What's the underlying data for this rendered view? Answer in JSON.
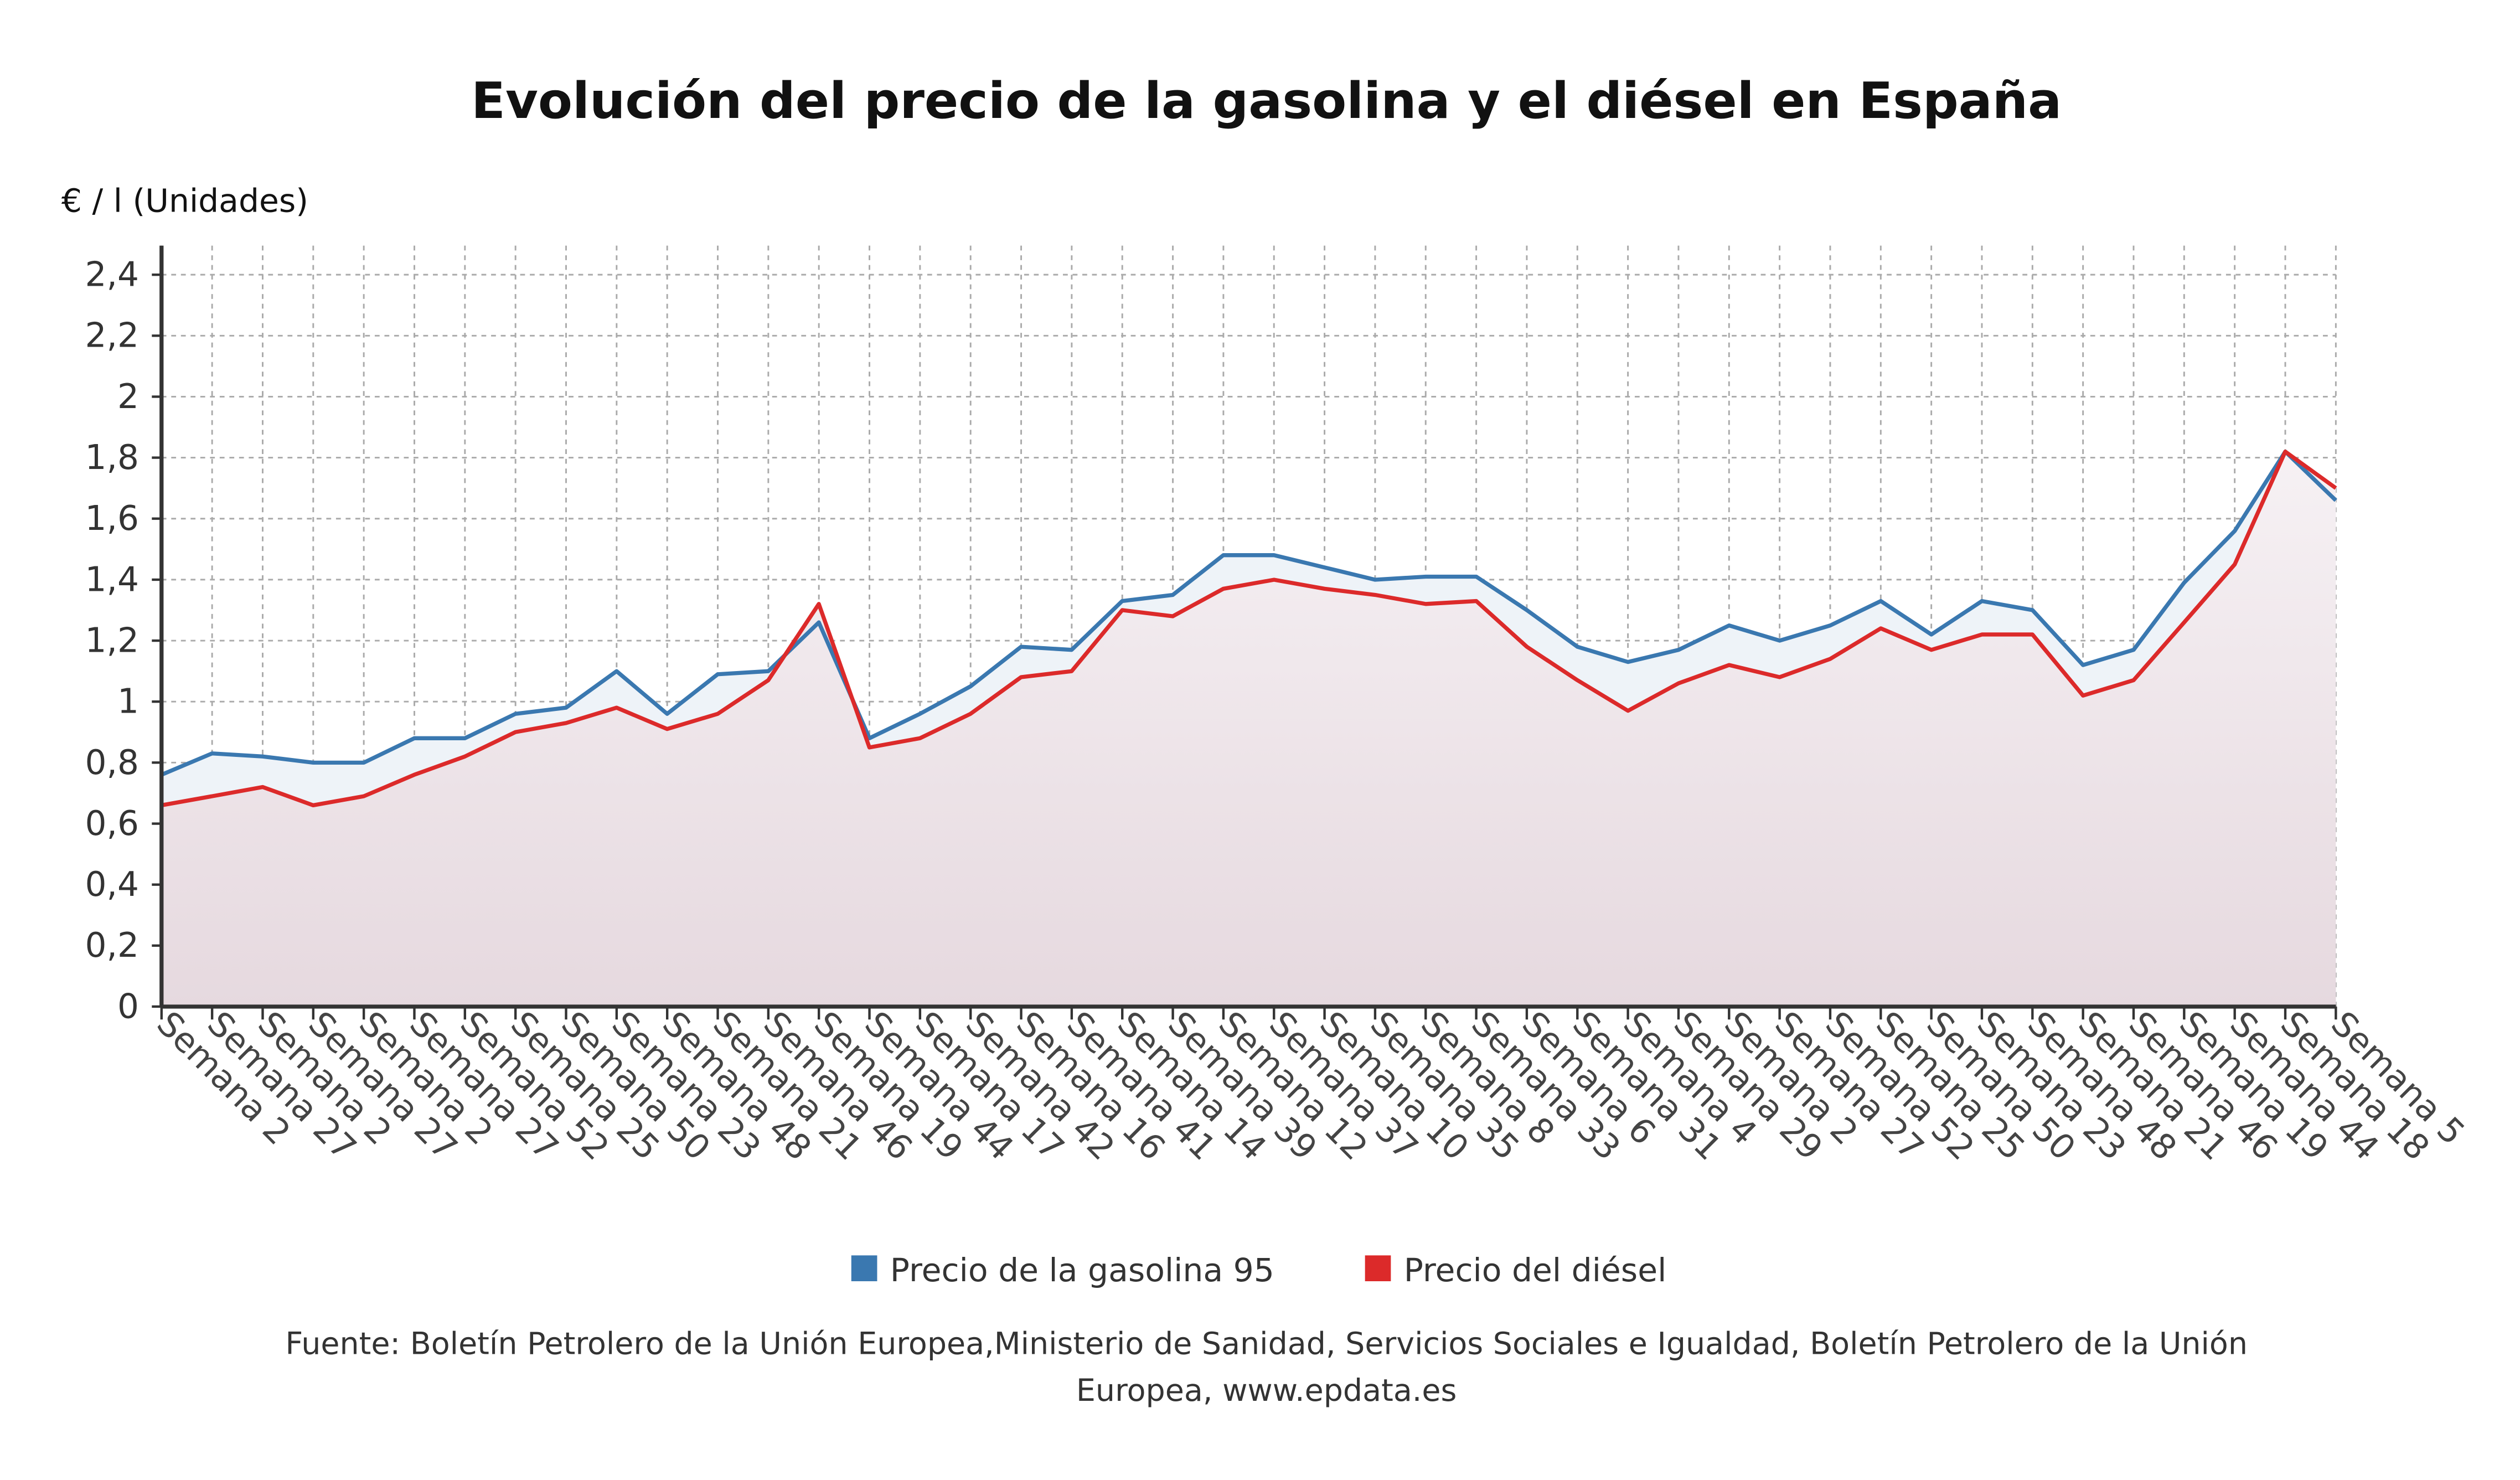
{
  "chart_data": {
    "type": "area",
    "title": "Evolución del precio de la gasolina y el diésel en España",
    "ylabel": "€ / l (Unidades)",
    "xlabel": "",
    "ylim": [
      0,
      2.4
    ],
    "yticks": [
      "0",
      "0,2",
      "0,4",
      "0,6",
      "0,8",
      "1",
      "1,2",
      "1,4",
      "1,6",
      "1,8",
      "2",
      "2,2",
      "2,4"
    ],
    "grid": true,
    "legend_position": "bottom",
    "categories": [
      "Semana 2",
      "Semana 27",
      "Semana 2",
      "Semana 27",
      "Semana 2",
      "Semana 27",
      "Semana 52",
      "Semana 25",
      "Semana 50",
      "Semana 23",
      "Semana 48",
      "Semana 21",
      "Semana 46",
      "Semana 19",
      "Semana 44",
      "Semana 17",
      "Semana 42",
      "Semana 16",
      "Semana 41",
      "Semana 14",
      "Semana 39",
      "Semana 12",
      "Semana 37",
      "Semana 10",
      "Semana 35",
      "Semana 8",
      "Semana 33",
      "Semana 6",
      "Semana 31",
      "Semana 4",
      "Semana 29",
      "Semana 2",
      "Semana 27",
      "Semana 52",
      "Semana 25",
      "Semana 50",
      "Semana 23",
      "Semana 48",
      "Semana 21",
      "Semana 46",
      "Semana 19",
      "Semana 44",
      "Semana 18",
      "Semana 5"
    ],
    "series": [
      {
        "name": "Precio de la gasolina 95",
        "color": "#3a78b0",
        "values": [
          0.76,
          0.83,
          0.82,
          0.8,
          0.8,
          0.88,
          0.88,
          0.96,
          0.98,
          1.1,
          0.96,
          1.09,
          1.1,
          1.26,
          0.88,
          0.96,
          1.05,
          1.18,
          1.17,
          1.33,
          1.35,
          1.48,
          1.48,
          1.44,
          1.4,
          1.41,
          1.41,
          1.3,
          1.18,
          1.13,
          1.17,
          1.25,
          1.2,
          1.25,
          1.33,
          1.22,
          1.33,
          1.3,
          1.12,
          1.17,
          1.39,
          1.56,
          1.82,
          1.66
        ]
      },
      {
        "name": "Precio del diésel",
        "color": "#dc2a2a",
        "values": [
          0.66,
          0.69,
          0.72,
          0.66,
          0.69,
          0.76,
          0.82,
          0.9,
          0.93,
          0.98,
          0.91,
          0.96,
          1.07,
          1.32,
          0.85,
          0.88,
          0.96,
          1.08,
          1.1,
          1.3,
          1.28,
          1.37,
          1.4,
          1.37,
          1.35,
          1.32,
          1.33,
          1.18,
          1.07,
          0.97,
          1.06,
          1.12,
          1.08,
          1.14,
          1.24,
          1.17,
          1.22,
          1.22,
          1.02,
          1.07,
          1.26,
          1.45,
          1.82,
          1.7
        ]
      }
    ]
  },
  "source": {
    "line1": "Fuente: Boletín Petrolero de la Unión Europea,Ministerio de Sanidad, Servicios Sociales e Igualdad, Boletín Petrolero de la Unión",
    "line2": "Europea, www.epdata.es"
  }
}
